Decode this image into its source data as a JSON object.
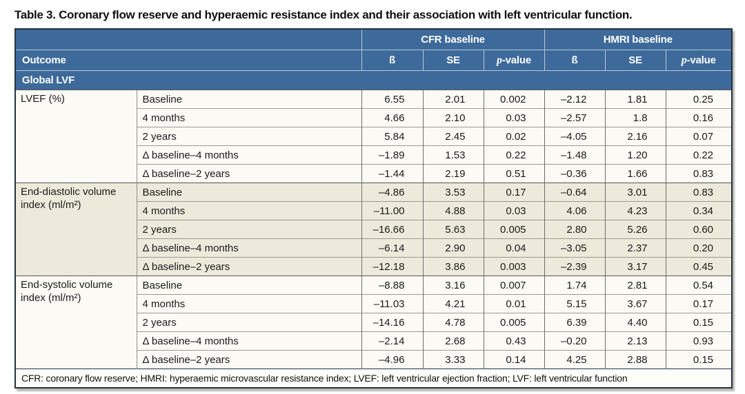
{
  "title": "Table 3. Coronary flow reserve and hyperaemic resistance index and their association with left ventricular function.",
  "table": {
    "column_groups": [
      "CFR baseline",
      "HMRI baseline"
    ],
    "sub_headers": [
      "ß",
      "SE",
      "p-value"
    ],
    "outcome_header": "Outcome",
    "section_header": "Global LVF",
    "groups": [
      {
        "outcome": "LVEF (%)",
        "rows": [
          {
            "label": "Baseline",
            "values": [
              "6.55",
              "2.01",
              "0.002",
              "–2.12",
              "1.81",
              "0.25"
            ]
          },
          {
            "label": "4 months",
            "values": [
              "4.66",
              "2.10",
              "0.03",
              "–2.57",
              "1.8",
              "0.16"
            ]
          },
          {
            "label": "2 years",
            "values": [
              "5.84",
              "2.45",
              "0.02",
              "–4.05",
              "2.16",
              "0.07"
            ]
          },
          {
            "label": "Δ baseline–4 months",
            "values": [
              "–1.89",
              "1.53",
              "0.22",
              "–1.48",
              "1.20",
              "0.22"
            ]
          },
          {
            "label": "Δ baseline–2 years",
            "values": [
              "–1.44",
              "2.19",
              "0.51",
              "–0.36",
              "1.66",
              "0.83"
            ]
          }
        ]
      },
      {
        "outcome": "End-diastolic volume index (ml/m²)",
        "rows": [
          {
            "label": "Baseline",
            "values": [
              "–4.86",
              "3.53",
              "0.17",
              "–0.64",
              "3.01",
              "0.83"
            ]
          },
          {
            "label": "4 months",
            "values": [
              "–11.00",
              "4.88",
              "0.03",
              "4.06",
              "4.23",
              "0.34"
            ]
          },
          {
            "label": "2 years",
            "values": [
              "–16.66",
              "5.63",
              "0.005",
              "2.80",
              "5.26",
              "0.60"
            ]
          },
          {
            "label": "Δ baseline–4 months",
            "values": [
              "–6.14",
              "2.90",
              "0.04",
              "–3.05",
              "2.37",
              "0.20"
            ]
          },
          {
            "label": "Δ baseline–2 years",
            "values": [
              "–12.18",
              "3.86",
              "0.003",
              "–2.39",
              "3.17",
              "0.45"
            ]
          }
        ]
      },
      {
        "outcome": "End-systolic volume index (ml/m²)",
        "rows": [
          {
            "label": "Baseline",
            "values": [
              "–8.88",
              "3.16",
              "0.007",
              "1.74",
              "2.81",
              "0.54"
            ]
          },
          {
            "label": "4 months",
            "values": [
              "–11.03",
              "4.21",
              "0.01",
              "5.15",
              "3.67",
              "0.17"
            ]
          },
          {
            "label": "2 years",
            "values": [
              "–14.16",
              "4.78",
              "0.005",
              "6.39",
              "4.40",
              "0.15"
            ]
          },
          {
            "label": "Δ baseline–4 months",
            "values": [
              "–2.14",
              "2.68",
              "0.43",
              "–0.20",
              "2.13",
              "0.93"
            ]
          },
          {
            "label": "Δ baseline–2 years",
            "values": [
              "–4.96",
              "3.33",
              "0.14",
              "4.25",
              "2.88",
              "0.15"
            ]
          }
        ]
      }
    ],
    "footnote": "CFR: coronary flow reserve; HMRI: hyperaemic microvascular resistance index; LVEF: left ventricular ejection fraction; LVF: left ventricular function",
    "colors": {
      "header_blue": "#3d6a9b",
      "shaded_row": "#edeadb",
      "plain_row": "#fbfaf5",
      "outer_border": "#233140"
    }
  }
}
